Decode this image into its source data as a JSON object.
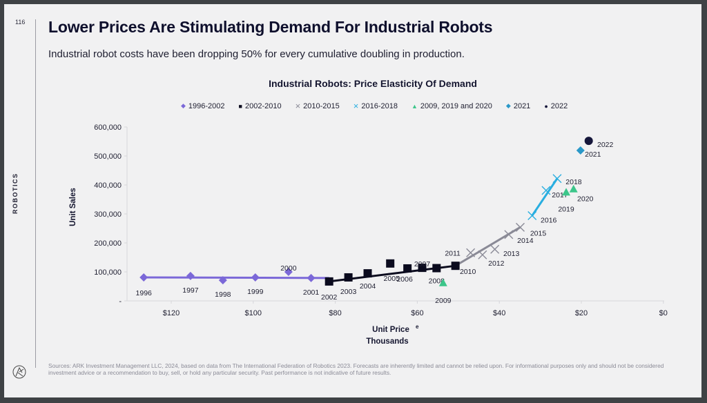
{
  "page": {
    "number": "116",
    "section": "ROBOTICS",
    "title": "Lower Prices Are Stimulating Demand For Industrial Robots",
    "subtitle": "Industrial robot costs have been dropping 50% for every cumulative doubling in production.",
    "sources": "Sources: ARK Investment Management LLC, 2024, based on data from The International Federation of Robotics 2023. Forecasts are inherently limited and cannot be relied upon. For informational purposes only and should not be considered investment advice or a recommendation to buy, sell, or hold any particular security. Past performance is not indicative of future results.",
    "logo_icon": "ark-logo-icon"
  },
  "chart_data": {
    "type": "scatter",
    "title": "Industrial Robots: Price Elasticity Of Demand",
    "xlabel": "Unit Price",
    "xlabel_superscript": "e",
    "xlabel_sub": "Thousands",
    "ylabel": "Unit Sales",
    "xlim": [
      130,
      0
    ],
    "x_reversed": true,
    "ylim": [
      0,
      600000
    ],
    "x_ticks": [
      120,
      100,
      80,
      60,
      40,
      20,
      0
    ],
    "x_tick_labels": [
      "$120",
      "$100",
      "$80",
      "$60",
      "$40",
      "$20",
      "$0"
    ],
    "y_ticks": [
      0,
      100000,
      200000,
      300000,
      400000,
      500000,
      600000
    ],
    "y_tick_labels": [
      "-",
      "100,000",
      "200,000",
      "300,000",
      "400,000",
      "500,000",
      "600,000"
    ],
    "grid": false,
    "legend_position": "top",
    "series": [
      {
        "name": "1996-2002",
        "marker": "diamond",
        "color": "#7b68d8",
        "line": true,
        "points": [
          {
            "label": "1996",
            "x": 126.7,
            "y": 81000
          },
          {
            "label": "1997",
            "x": 115.3,
            "y": 86000
          },
          {
            "label": "1998",
            "x": 107.4,
            "y": 71000
          },
          {
            "label": "1999",
            "x": 99.5,
            "y": 81000
          },
          {
            "label": "2000",
            "x": 91.4,
            "y": 100000
          },
          {
            "label": "2001",
            "x": 85.9,
            "y": 79000
          }
        ]
      },
      {
        "name": "2002-2010",
        "marker": "square",
        "color": "#0b0b1e",
        "line": true,
        "points": [
          {
            "label": "2002",
            "x": 81.5,
            "y": 67000
          },
          {
            "label": "2003",
            "x": 76.8,
            "y": 81000
          },
          {
            "label": "2004",
            "x": 72.1,
            "y": 95000
          },
          {
            "label": "2005",
            "x": 66.6,
            "y": 129000
          },
          {
            "label": "2006",
            "x": 62.4,
            "y": 112000
          },
          {
            "label": "2007",
            "x": 58.8,
            "y": 114000
          },
          {
            "label": "2008",
            "x": 55.3,
            "y": 113000
          },
          {
            "label": "2010",
            "x": 50.7,
            "y": 121000
          }
        ]
      },
      {
        "name": "2010-2015",
        "marker": "x",
        "color": "#8a8a96",
        "line": true,
        "points": [
          {
            "label": "2011",
            "x": 47.0,
            "y": 166000
          },
          {
            "label": "2012",
            "x": 44.1,
            "y": 159000
          },
          {
            "label": "2013",
            "x": 41.1,
            "y": 178000
          },
          {
            "label": "2014",
            "x": 37.7,
            "y": 229000
          },
          {
            "label": "2015",
            "x": 34.9,
            "y": 254000
          }
        ]
      },
      {
        "name": "2016-2018",
        "marker": "x",
        "color": "#29aee0",
        "line": true,
        "points": [
          {
            "label": "2016",
            "x": 32.0,
            "y": 294000
          },
          {
            "label": "2017",
            "x": 28.6,
            "y": 381000
          },
          {
            "label": "2018",
            "x": 25.9,
            "y": 422000
          }
        ]
      },
      {
        "name": "2009, 2019 and 2020",
        "marker": "triangle",
        "color": "#3cc68a",
        "line": false,
        "points": [
          {
            "label": "2009",
            "x": 53.7,
            "y": 60000
          },
          {
            "label": "2019",
            "x": 23.7,
            "y": 373000
          },
          {
            "label": "2020",
            "x": 21.9,
            "y": 384000
          }
        ]
      },
      {
        "name": "2021",
        "marker": "diamond",
        "color": "#2a98c8",
        "line": false,
        "points": [
          {
            "label": "2021",
            "x": 20.2,
            "y": 519000
          }
        ]
      },
      {
        "name": "2022",
        "marker": "circle",
        "color": "#15163a",
        "line": false,
        "points": [
          {
            "label": "2022",
            "x": 18.2,
            "y": 552000
          }
        ]
      }
    ],
    "line_segments": [
      {
        "from_series": "1996-2002",
        "color": "#7b68d8",
        "points": [
          [
            126.7,
            81000
          ],
          [
            81.5,
            79000
          ]
        ]
      },
      {
        "from_series": "2002-2010",
        "color": "#0b0b1e",
        "points": [
          [
            81.5,
            67000
          ],
          [
            50.7,
            121000
          ]
        ]
      },
      {
        "from_series": "2010-2015",
        "color": "#8a8a96",
        "points": [
          [
            50.7,
            121000
          ],
          [
            34.9,
            254000
          ]
        ]
      },
      {
        "from_series": "2016-2018",
        "color": "#29aee0",
        "points": [
          [
            32.0,
            294000
          ],
          [
            25.9,
            422000
          ]
        ]
      }
    ]
  }
}
